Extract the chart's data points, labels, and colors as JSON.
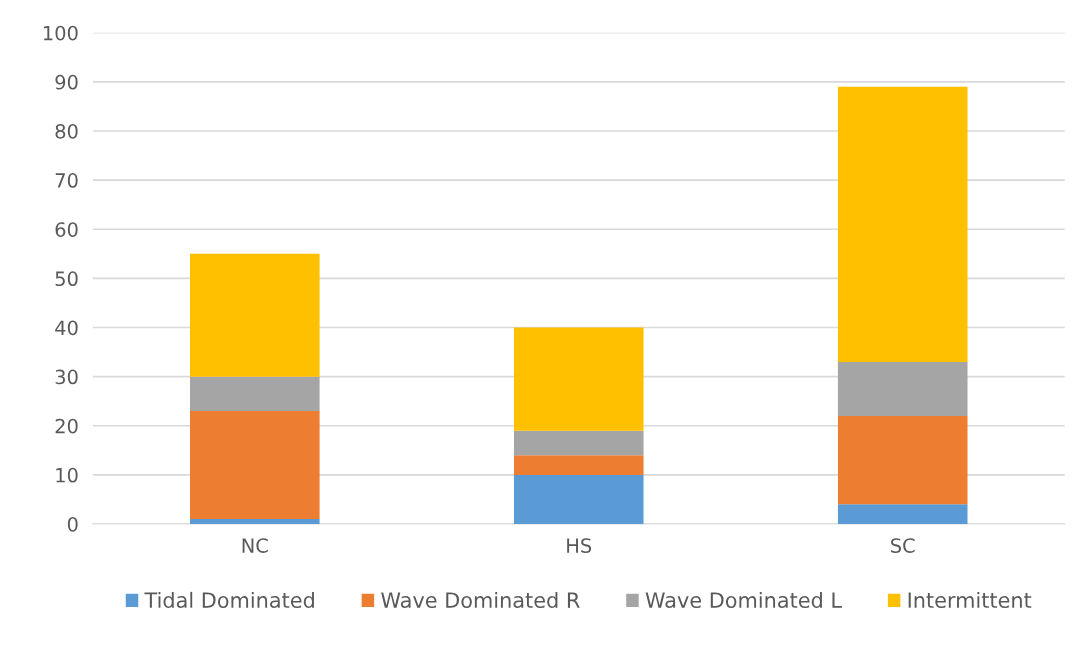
{
  "chart_data": {
    "type": "bar",
    "stacked": true,
    "categories": [
      "NC",
      "HS",
      "SC"
    ],
    "series": [
      {
        "name": "Tidal Dominated",
        "color": "#5b9bd5",
        "values": [
          1,
          10,
          4
        ]
      },
      {
        "name": "Wave Dominated R",
        "color": "#ed7d31",
        "values": [
          22,
          4,
          18
        ]
      },
      {
        "name": "Wave Dominated L",
        "color": "#a5a5a5",
        "values": [
          7,
          5,
          11
        ]
      },
      {
        "name": "Intermittent",
        "color": "#ffc000",
        "values": [
          25,
          21,
          56
        ]
      }
    ],
    "ylim": [
      0,
      100
    ],
    "yticks": [
      0,
      10,
      20,
      30,
      40,
      50,
      60,
      70,
      80,
      90,
      100
    ],
    "grid": "y",
    "legend": "bottom"
  }
}
